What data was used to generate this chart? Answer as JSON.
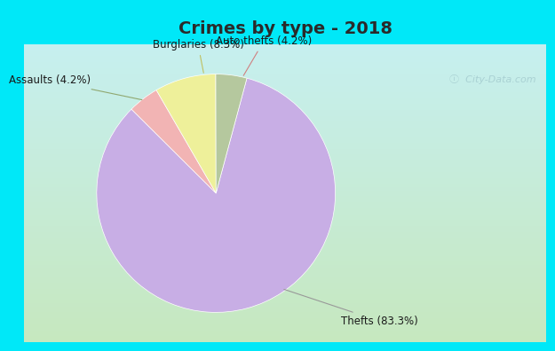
{
  "title": "Crimes by type - 2018",
  "slices": [
    {
      "label": "Thefts (83.3%)",
      "value": 83.3,
      "color": "#c8aee5"
    },
    {
      "label": "Auto thefts (4.2%)",
      "value": 4.2,
      "color": "#f2b4b4"
    },
    {
      "label": "Burglaries (8.3%)",
      "value": 8.3,
      "color": "#eef09a"
    },
    {
      "label": "Assaults (4.2%)",
      "value": 4.2,
      "color": "#b5c89e"
    }
  ],
  "border_color": "#00e8f8",
  "title_bg": "#00e8f8",
  "title_fontsize": 14,
  "label_fontsize": 8.5,
  "watermark": "ⓘ  City-Data.com",
  "startangle": 75,
  "title_color": "#2a2a2a"
}
